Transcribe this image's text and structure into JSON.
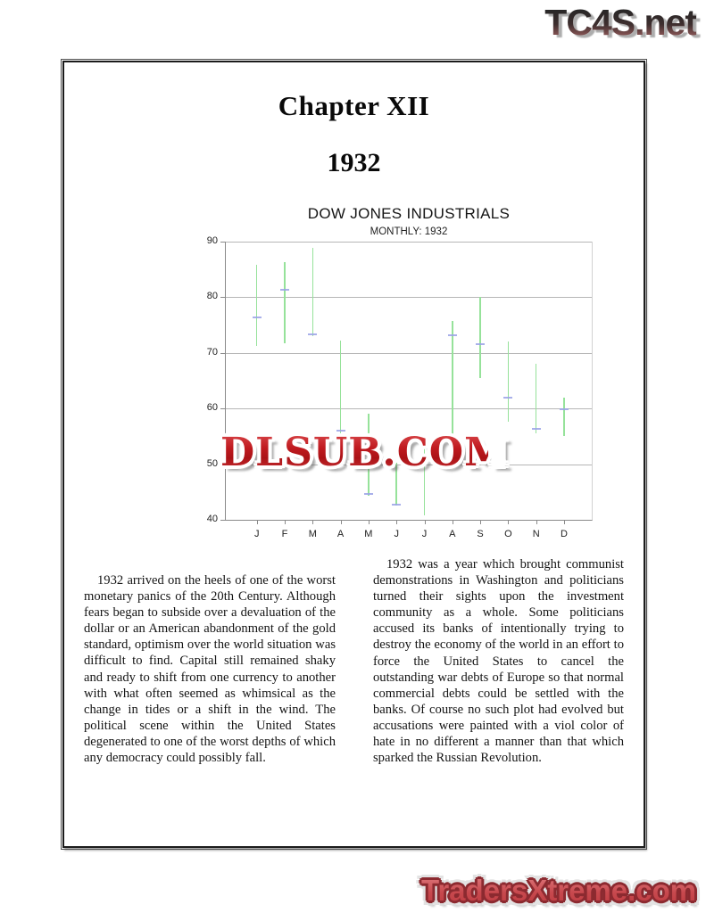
{
  "watermarks": {
    "site_top": "TC4S.net",
    "site_overlay": "DLSUB.COM",
    "site_bottom": "TradersXtreme.com"
  },
  "page": {
    "chapter_heading": "Chapter XII",
    "year_heading": "1932",
    "columns": {
      "left": "1932 arrived on the heels of one of the worst monetary panics of the 20th Century. Although fears began to subside over a devaluation of the dollar or an American abandonment of the gold standard, optimism over the world situation was difficult to find.  Capital still remained shaky and ready to shift from one currency to another with what often seemed as whimsical as the change in tides or a shift in the wind. The political scene within the United States degenerated to one of the worst depths of which any democracy could possibly fall.",
      "right": "1932 was a year which brought communist demonstrations in Washington and politicians turned their sights upon the investment community as a whole.  Some politicians accused its banks of intentionally trying to destroy the economy of the world in an effort to force the United States to cancel the outstanding war debts of Europe so that normal commercial debts could be settled with the banks.  Of course no such plot had evolved but accusations were painted with a viol color of hate in no different a manner than that which sparked the Russian Revolution."
    }
  },
  "chart_data": {
    "type": "bar",
    "variant": "high-low-close range bars",
    "title": "DOW JONES INDUSTRIALS",
    "subtitle": "MONTHLY: 1932",
    "categories": [
      "J",
      "F",
      "M",
      "A",
      "M",
      "J",
      "J",
      "A",
      "S",
      "O",
      "N",
      "D"
    ],
    "series": [
      {
        "name": "high",
        "values": [
          85.8,
          86.3,
          88.9,
          72.2,
          59.0,
          50.2,
          54.3,
          75.8,
          80.0,
          72.1,
          68.0,
          62.0
        ]
      },
      {
        "name": "low",
        "values": [
          71.2,
          71.8,
          73.0,
          55.6,
          44.3,
          42.5,
          40.8,
          53.1,
          65.5,
          57.7,
          55.5,
          55.0
        ]
      },
      {
        "name": "close",
        "values": [
          76.3,
          81.3,
          73.3,
          56.1,
          44.7,
          42.8,
          53.2,
          73.2,
          71.6,
          61.9,
          56.4,
          59.9
        ]
      }
    ],
    "xlabel": "",
    "ylabel": "",
    "ylim": [
      40,
      90
    ],
    "yticks": [
      40,
      50,
      60,
      70,
      80,
      90
    ],
    "grid": true,
    "legend": false,
    "colors": {
      "range_bar": "#96e29a",
      "close_tick": "#9aa2e6",
      "grid": "#b6b6b6",
      "axis": "#8a8a8a",
      "label": "#222222"
    }
  }
}
